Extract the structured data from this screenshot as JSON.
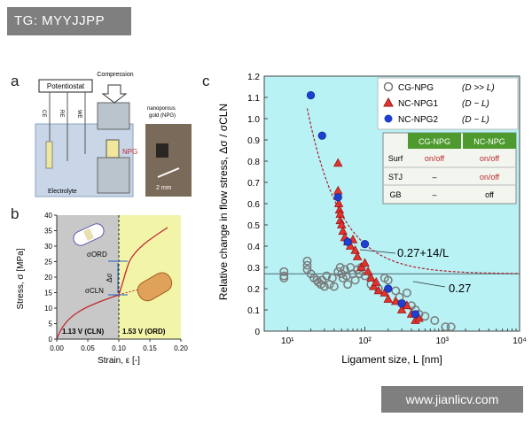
{
  "tag": "TG: MYYJJPP",
  "watermark": "www.jianlicv.com",
  "panel_a": {
    "letter": "a",
    "compression": "Compression",
    "potentiostat": "Potentiostat",
    "electrodes": [
      "CE",
      "RE",
      "WE"
    ],
    "npg": "NPG",
    "electrolyte": "Electrolyte",
    "photo_caption_1": "nanoporous",
    "photo_caption_2": "gold (NPG)",
    "scale": "2 mm"
  },
  "panel_b": {
    "letter": "b",
    "ylabel": "Stress, σ [MPa]",
    "xlabel": "Strain, ε [-]",
    "xticks": [
      "0.00",
      "0.05",
      "0.10",
      "0.15",
      "0.20"
    ],
    "yticks": [
      "0",
      "5",
      "10",
      "15",
      "20",
      "25",
      "30",
      "35",
      "40"
    ],
    "label_cln": "1.13 V (CLN)",
    "label_ord": "1.53 V (ORD)",
    "sigma_ord": "σORD",
    "sigma_cln": "σCLN",
    "delta": "Δσ",
    "colors": {
      "cln_bg": "#c8c8c8",
      "ord_bg": "#f2f4a8",
      "curve": "#c0282e"
    }
  },
  "chart_data": {
    "type": "scatter",
    "title": "",
    "letter": "c",
    "xlabel": "Ligament size, L [nm]",
    "ylabel": "Relative change in flow stress, Δσ / σCLN",
    "xscale": "log",
    "xlim": [
      5,
      10000
    ],
    "ylim": [
      0,
      1.2
    ],
    "xticks": [
      10,
      100,
      1000,
      10000
    ],
    "xtick_labels": [
      "10¹",
      "10²",
      "10³",
      "10⁴"
    ],
    "yticks": [
      "0",
      "0.1",
      "0.2",
      "0.3",
      "0.4",
      "0.5",
      "0.6",
      "0.7",
      "0.8",
      "0.9",
      "1.0",
      "1.1",
      "1.2"
    ],
    "fit_label": "0.27+14/L",
    "baseline_label": "0.27",
    "baseline": 0.27,
    "legend": [
      {
        "name": "CG-NPG",
        "cond": "(D >> L)"
      },
      {
        "name": "NC-NPG1",
        "cond": "(D ~ L)"
      },
      {
        "name": "NC-NPG2",
        "cond": "(D ~ L)"
      }
    ],
    "table": {
      "headers": [
        "",
        "CG-NPG",
        "NC-NPG"
      ],
      "rows": [
        [
          "Surf",
          "on/off",
          "on/off"
        ],
        [
          "STJ",
          "–",
          "on/off"
        ],
        [
          "GB",
          "–",
          "off"
        ]
      ]
    },
    "series": [
      {
        "name": "CG-NPG",
        "points": [
          [
            9,
            0.28
          ],
          [
            9,
            0.26
          ],
          [
            9,
            0.25
          ],
          [
            18,
            0.33
          ],
          [
            18,
            0.31
          ],
          [
            18,
            0.29
          ],
          [
            20,
            0.27
          ],
          [
            22,
            0.25
          ],
          [
            24,
            0.24
          ],
          [
            25,
            0.23
          ],
          [
            27,
            0.22
          ],
          [
            28,
            0.24
          ],
          [
            30,
            0.21
          ],
          [
            32,
            0.26
          ],
          [
            35,
            0.22
          ],
          [
            38,
            0.25
          ],
          [
            40,
            0.21
          ],
          [
            45,
            0.28
          ],
          [
            48,
            0.3
          ],
          [
            50,
            0.27
          ],
          [
            52,
            0.25
          ],
          [
            55,
            0.29
          ],
          [
            58,
            0.26
          ],
          [
            60,
            0.22
          ],
          [
            65,
            0.3
          ],
          [
            70,
            0.27
          ],
          [
            75,
            0.24
          ],
          [
            80,
            0.29
          ],
          [
            85,
            0.27
          ],
          [
            90,
            0.3
          ],
          [
            100,
            0.26
          ],
          [
            120,
            0.22
          ],
          [
            150,
            0.2
          ],
          [
            180,
            0.25
          ],
          [
            200,
            0.24
          ],
          [
            250,
            0.19
          ],
          [
            280,
            0.16
          ],
          [
            300,
            0.13
          ],
          [
            350,
            0.18
          ],
          [
            400,
            0.12
          ],
          [
            450,
            0.1
          ],
          [
            500,
            0.08
          ],
          [
            600,
            0.07
          ],
          [
            800,
            0.05
          ],
          [
            1100,
            0.02
          ],
          [
            1300,
            0.02
          ]
        ]
      },
      {
        "name": "NC-NPG1",
        "points": [
          [
            45,
            0.79
          ],
          [
            45,
            0.66
          ],
          [
            46,
            0.6
          ],
          [
            47,
            0.57
          ],
          [
            48,
            0.55
          ],
          [
            48,
            0.52
          ],
          [
            50,
            0.5
          ],
          [
            52,
            0.47
          ],
          [
            55,
            0.44
          ],
          [
            60,
            0.42
          ],
          [
            65,
            0.4
          ],
          [
            70,
            0.43
          ],
          [
            75,
            0.38
          ],
          [
            80,
            0.35
          ],
          [
            90,
            0.3
          ],
          [
            100,
            0.32
          ],
          [
            110,
            0.28
          ],
          [
            120,
            0.25
          ],
          [
            130,
            0.21
          ],
          [
            140,
            0.23
          ],
          [
            150,
            0.19
          ],
          [
            180,
            0.18
          ],
          [
            200,
            0.15
          ],
          [
            250,
            0.14
          ],
          [
            300,
            0.1
          ],
          [
            350,
            0.12
          ],
          [
            400,
            0.08
          ],
          [
            450,
            0.05
          ],
          [
            500,
            0.06
          ]
        ]
      },
      {
        "name": "NC-NPG2",
        "points": [
          [
            20,
            1.11
          ],
          [
            28,
            0.92
          ],
          [
            45,
            0.63
          ],
          [
            60,
            0.42
          ],
          [
            100,
            0.41
          ],
          [
            200,
            0.2
          ],
          [
            300,
            0.13
          ],
          [
            450,
            0.08
          ]
        ]
      }
    ],
    "fit": {
      "a": 0.27,
      "b": 14
    }
  }
}
